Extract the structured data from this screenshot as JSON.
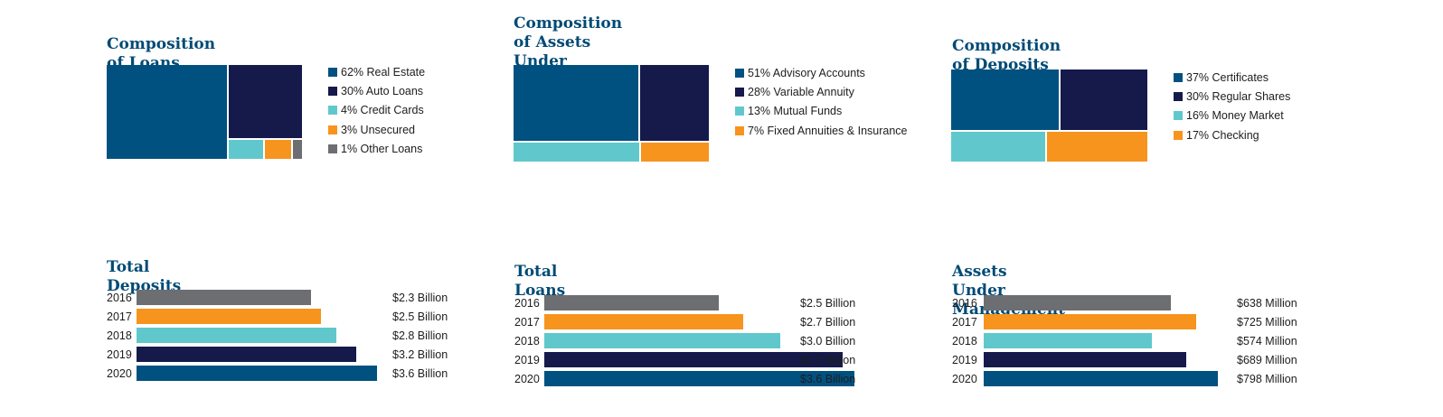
{
  "colors": {
    "title": "#004a75",
    "teal_blue": "#005180",
    "navy": "#151a4b",
    "aqua": "#60c8cc",
    "orange": "#f7941d",
    "gray": "#6d6e71"
  },
  "chart_data": [
    {
      "type": "treemap",
      "title": "Composition of Loans",
      "items": [
        {
          "label": "62% Real Estate",
          "value": 62,
          "color": "#005180"
        },
        {
          "label": "30% Auto Loans",
          "value": 30,
          "color": "#151a4b"
        },
        {
          "label": "4% Credit Cards",
          "value": 4,
          "color": "#60c8cc"
        },
        {
          "label": "3% Unsecured",
          "value": 3,
          "color": "#f7941d"
        },
        {
          "label": "1% Other Loans",
          "value": 1,
          "color": "#6d6e71"
        }
      ]
    },
    {
      "type": "treemap",
      "title": "Composition of Assets\nUnder Management",
      "items": [
        {
          "label": "51% Advisory Accounts",
          "value": 51,
          "color": "#005180"
        },
        {
          "label": "28% Variable Annuity",
          "value": 28,
          "color": "#151a4b"
        },
        {
          "label": "13% Mutual Funds",
          "value": 13,
          "color": "#60c8cc"
        },
        {
          "label": "7% Fixed Annuities & Insurance",
          "value": 7,
          "color": "#f7941d"
        }
      ]
    },
    {
      "type": "treemap",
      "title": "Composition of Deposits",
      "items": [
        {
          "label": "37% Certificates",
          "value": 37,
          "color": "#005180"
        },
        {
          "label": "30% Regular Shares",
          "value": 30,
          "color": "#151a4b"
        },
        {
          "label": "16% Money Market",
          "value": 16,
          "color": "#60c8cc"
        },
        {
          "label": "17% Checking",
          "value": 17,
          "color": "#f7941d"
        }
      ]
    },
    {
      "type": "bar",
      "orientation": "horizontal",
      "title": "Total Deposits",
      "categories": [
        "2016",
        "2017",
        "2018",
        "2019",
        "2020"
      ],
      "values": [
        2.3,
        2.5,
        2.8,
        3.2,
        3.6
      ],
      "value_labels": [
        "$2.3 Billion",
        "$2.5 Billion",
        "$2.8 Billion",
        "$3.2 Billion",
        "$3.6 Billion"
      ],
      "colors": [
        "#6d6e71",
        "#f7941d",
        "#60c8cc",
        "#151a4b",
        "#005180"
      ]
    },
    {
      "type": "bar",
      "orientation": "horizontal",
      "title": "Total Loans",
      "categories": [
        "2016",
        "2017",
        "2018",
        "2019",
        "2020"
      ],
      "values": [
        2.5,
        2.7,
        3.0,
        3.5,
        3.6
      ],
      "value_labels": [
        "$2.5 Billion",
        "$2.7 Billion",
        "$3.0 Billion",
        "$3.5 Billion",
        "$3.6 Billion"
      ],
      "colors": [
        "#6d6e71",
        "#f7941d",
        "#60c8cc",
        "#151a4b",
        "#005180"
      ]
    },
    {
      "type": "bar",
      "orientation": "horizontal",
      "title": "Assets Under Management",
      "categories": [
        "2016",
        "2017",
        "2018",
        "2019",
        "2020"
      ],
      "values": [
        638,
        725,
        574,
        689,
        798
      ],
      "value_labels": [
        "$638 Million",
        "$725 Million",
        "$574 Million",
        "$689 Million",
        "$798 Million"
      ],
      "colors": [
        "#6d6e71",
        "#f7941d",
        "#60c8cc",
        "#151a4b",
        "#005180"
      ]
    }
  ]
}
